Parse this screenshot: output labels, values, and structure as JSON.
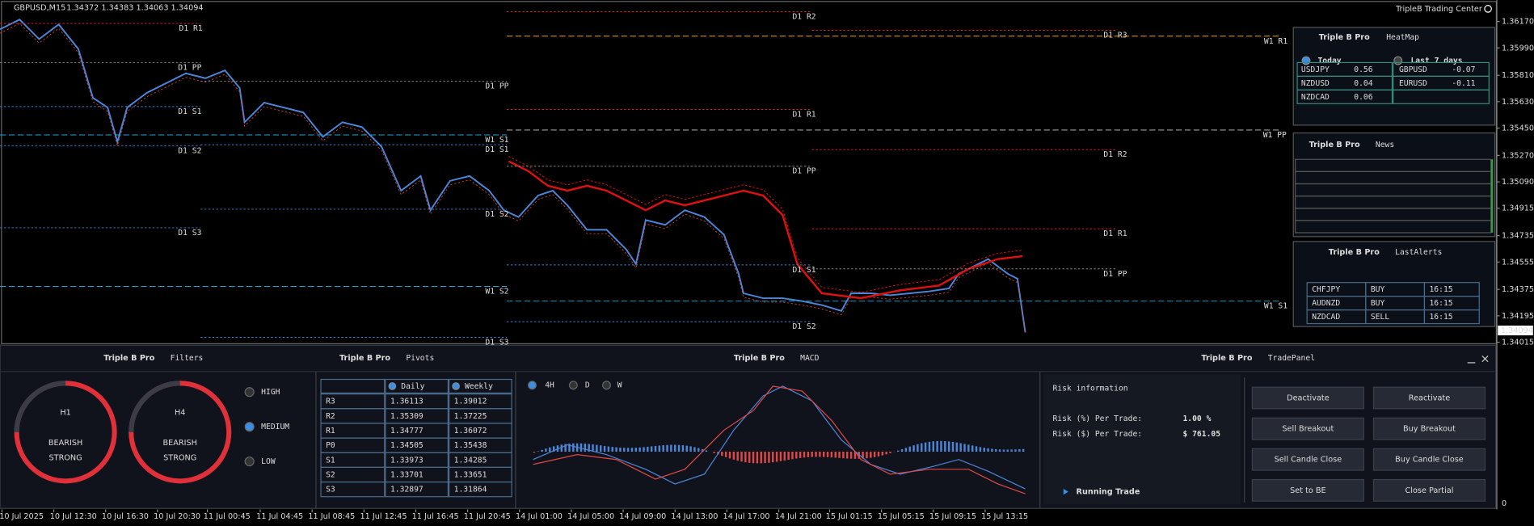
{
  "header": {
    "symbol": "GBPUSD,M15",
    "ohlc": "1.34372 1.34383 1.34063 1.34094",
    "brand": "TripleB Trading Center"
  },
  "price_axis": [
    "1.36170",
    "1.35990",
    "1.35810",
    "1.35630",
    "1.35450",
    "1.35270",
    "1.35090",
    "1.34915",
    "1.34735",
    "1.34555",
    "1.34375",
    "1.34195",
    "1.34015"
  ],
  "current_price": "1.34094",
  "indicator_axis": "0",
  "time_axis": [
    "10 Jul 2025",
    "10 Jul 12:30",
    "10 Jul 16:30",
    "10 Jul 20:30",
    "11 Jul 00:45",
    "11 Jul 04:45",
    "11 Jul 08:45",
    "11 Jul 12:45",
    "11 Jul 16:45",
    "11 Jul 20:45",
    "14 Jul 01:00",
    "14 Jul 05:00",
    "14 Jul 09:00",
    "14 Jul 13:00",
    "14 Jul 17:00",
    "14 Jul 21:00",
    "15 Jul 01:15",
    "15 Jul 05:15",
    "15 Jul 09:15",
    "15 Jul 13:15"
  ],
  "pivot_levels": [
    "D1 R1",
    "D1 R2",
    "D1 R3",
    "W1 R1",
    "D1 PP",
    "D1 PP",
    "D1 S1",
    "D1 R1",
    "W1 PP",
    "W1 S1",
    "D1 S1",
    "D1 S2",
    "D1 R2",
    "D1 PP",
    "D1 S2",
    "D1 R1",
    "D1 S3",
    "D1 S1",
    "D1 PP",
    "W1 S2",
    "W1 S1",
    "D1 S2",
    "D1 S3"
  ],
  "heatmap": {
    "brand": "Triple B Pro",
    "title": "HeatMap",
    "tabs": [
      "Today",
      "Last 7 days"
    ],
    "positive": [
      [
        "USDJPY",
        "0.56"
      ],
      [
        "NZDUSD",
        "0.04"
      ],
      [
        "NZDCAD",
        "0.06"
      ]
    ],
    "negative": [
      [
        "GBPUSD",
        "-0.07"
      ],
      [
        "EURUSD",
        "-0.11"
      ]
    ]
  },
  "news": {
    "brand": "Triple B Pro",
    "title": "News"
  },
  "alerts": {
    "brand": "Triple B Pro",
    "title": "LastAlerts",
    "rows": [
      [
        "CHFJPY",
        "BUY",
        "16:15"
      ],
      [
        "AUDNZD",
        "BUY",
        "16:15"
      ],
      [
        "NZDCAD",
        "SELL",
        "16:15"
      ]
    ]
  },
  "filters": {
    "brand": "Triple B Pro",
    "title": "Filters",
    "gauges": [
      {
        "timeframe": "H1",
        "signal": "BEARISH",
        "strength": "STRONG"
      },
      {
        "timeframe": "H4",
        "signal": "BEARISH",
        "strength": "STRONG"
      }
    ],
    "levels": [
      "HIGH",
      "MEDIUM",
      "LOW"
    ]
  },
  "pivots": {
    "brand": "Triple B Pro",
    "title": "Pivots",
    "columns": [
      "Daily",
      "Weekly"
    ],
    "rows": [
      [
        "R3",
        "1.36113",
        "1.39012"
      ],
      [
        "R2",
        "1.35309",
        "1.37225"
      ],
      [
        "R1",
        "1.34777",
        "1.36072"
      ],
      [
        "P0",
        "1.34505",
        "1.35438"
      ],
      [
        "S1",
        "1.33973",
        "1.34285"
      ],
      [
        "S2",
        "1.33701",
        "1.33651"
      ],
      [
        "S3",
        "1.32897",
        "1.31864"
      ]
    ]
  },
  "macd": {
    "brand": "Triple B Pro",
    "title": "MACD",
    "timeframes": [
      "4H",
      "D",
      "W"
    ]
  },
  "trade_panel": {
    "brand": "Triple B Pro",
    "title": "TradePanel",
    "risk_title": "Risk information",
    "risk_pct_label": "Risk (%) Per Trade:",
    "risk_pct": "1.00 %",
    "risk_usd_label": "Risk ($) Per Trade:",
    "risk_usd": "$ 761.05",
    "running": "Running Trade",
    "buttons": [
      "Deactivate",
      "Reactivate",
      "Sell Breakout",
      "Buy Breakout",
      "Sell Candle Close",
      "Buy Candle Close",
      "Set to BE",
      "Close Partial"
    ]
  }
}
